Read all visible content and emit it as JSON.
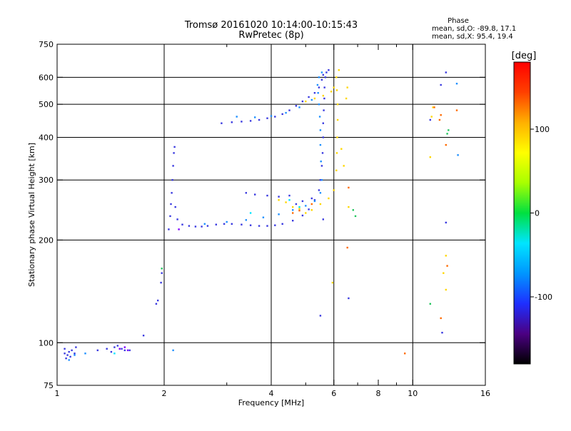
{
  "chart_data": {
    "type": "scatter",
    "title": "Tromsø 20161020 10:14:00-10:15:43",
    "subtitle": "RwPretec (8p)",
    "xlabel": "Frequency [MHz]",
    "ylabel": "Stationary phase Virtual Height [km]",
    "x_scale": "log",
    "y_scale": "log",
    "xlim": [
      1,
      16
    ],
    "ylim": [
      75,
      750
    ],
    "x_ticks": [
      1,
      2,
      4,
      6,
      8,
      10,
      16
    ],
    "x_minor_ticks": [
      3,
      5,
      7,
      9
    ],
    "y_ticks": [
      75,
      100,
      200,
      300,
      400,
      500,
      600,
      750
    ],
    "y_grid": [
      100,
      200,
      300,
      400,
      500,
      600
    ],
    "x_grid": [
      2,
      4,
      6,
      10
    ],
    "grid": true,
    "stats": {
      "title": "Phase",
      "line1": "mean, sd,O: -89.8, 17.1",
      "line2": "mean, sd,X:  95.4, 19.4"
    },
    "colorbar": {
      "label": "[deg]",
      "range": [
        -180,
        180
      ],
      "ticks": [
        100,
        0,
        -100
      ],
      "colors": [
        "#000000",
        "#4b0082",
        "#1e2fff",
        "#0096ff",
        "#00e5ff",
        "#00e040",
        "#a8ff00",
        "#ffff00",
        "#ffb000",
        "#ff4000",
        "#ff0000"
      ]
    },
    "series": [
      {
        "color": "#3a3ae0",
        "points": [
          [
            1.05,
            93
          ],
          [
            1.06,
            90
          ],
          [
            1.07,
            92
          ],
          [
            1.08,
            94
          ],
          [
            1.05,
            96
          ],
          [
            1.09,
            91
          ],
          [
            1.1,
            95
          ],
          [
            1.12,
            93
          ],
          [
            1.13,
            97
          ],
          [
            1.3,
            95
          ],
          [
            1.38,
            96
          ],
          [
            1.42,
            94
          ],
          [
            1.45,
            97
          ],
          [
            1.48,
            98
          ],
          [
            1.52,
            96
          ],
          [
            1.55,
            95
          ],
          [
            1.6,
            95
          ],
          [
            1.75,
            105
          ],
          [
            1.9,
            130
          ],
          [
            1.92,
            133
          ],
          [
            1.96,
            150
          ],
          [
            1.97,
            160
          ],
          [
            2.06,
            215
          ],
          [
            2.08,
            235
          ],
          [
            2.09,
            255
          ],
          [
            2.1,
            275
          ],
          [
            2.11,
            300
          ],
          [
            2.12,
            330
          ],
          [
            2.13,
            360
          ],
          [
            2.14,
            375
          ],
          [
            2.15,
            250
          ],
          [
            2.18,
            230
          ],
          [
            2.25,
            222
          ],
          [
            2.35,
            220
          ],
          [
            2.45,
            219
          ],
          [
            2.55,
            219
          ],
          [
            2.65,
            220
          ],
          [
            2.8,
            222
          ],
          [
            2.95,
            223
          ],
          [
            3.1,
            223
          ],
          [
            3.3,
            222
          ],
          [
            3.5,
            221
          ],
          [
            3.7,
            220
          ],
          [
            3.9,
            220
          ],
          [
            4.1,
            221
          ],
          [
            4.3,
            223
          ],
          [
            4.6,
            228
          ],
          [
            4.9,
            236
          ],
          [
            5.1,
            246
          ],
          [
            5.3,
            262
          ],
          [
            5.45,
            280
          ],
          [
            5.5,
            300
          ],
          [
            5.55,
            330
          ],
          [
            5.58,
            360
          ],
          [
            5.6,
            400
          ],
          [
            5.6,
            440
          ],
          [
            5.62,
            480
          ],
          [
            5.64,
            520
          ],
          [
            5.65,
            560
          ],
          [
            5.68,
            600
          ],
          [
            5.72,
            620
          ],
          [
            5.8,
            630
          ],
          [
            2.9,
            440
          ],
          [
            3.1,
            443
          ],
          [
            3.3,
            445
          ],
          [
            3.5,
            447
          ],
          [
            3.7,
            450
          ],
          [
            3.9,
            455
          ],
          [
            4.1,
            460
          ],
          [
            4.3,
            468
          ],
          [
            4.5,
            480
          ],
          [
            4.7,
            495
          ],
          [
            4.9,
            510
          ],
          [
            5.1,
            525
          ],
          [
            5.3,
            540
          ],
          [
            5.45,
            560
          ],
          [
            5.55,
            590
          ],
          [
            5.6,
            610
          ],
          [
            3.4,
            275
          ],
          [
            3.6,
            272
          ],
          [
            3.9,
            270
          ],
          [
            4.2,
            268
          ],
          [
            4.5,
            270
          ],
          [
            4.7,
            255
          ],
          [
            4.9,
            260
          ],
          [
            5.2,
            265
          ],
          [
            5.6,
            230
          ],
          [
            6.6,
            135
          ],
          [
            5.5,
            120
          ],
          [
            12.4,
            620
          ],
          [
            12.0,
            570
          ],
          [
            11.2,
            450
          ],
          [
            12.4,
            225
          ],
          [
            12.1,
            107
          ]
        ]
      },
      {
        "color": "#1e90ff",
        "points": [
          [
            1.08,
            89
          ],
          [
            1.12,
            92
          ],
          [
            1.2,
            93
          ],
          [
            2.6,
            223
          ],
          [
            3.0,
            226
          ],
          [
            3.4,
            229
          ],
          [
            3.8,
            233
          ],
          [
            4.2,
            238
          ],
          [
            4.6,
            245
          ],
          [
            5.0,
            252
          ],
          [
            5.3,
            260
          ],
          [
            5.5,
            275
          ],
          [
            5.55,
            300
          ],
          [
            5.52,
            340
          ],
          [
            5.5,
            380
          ],
          [
            5.5,
            420
          ],
          [
            5.48,
            460
          ],
          [
            5.45,
            500
          ],
          [
            5.42,
            540
          ],
          [
            5.4,
            570
          ],
          [
            5.45,
            600
          ],
          [
            5.55,
            620
          ],
          [
            3.2,
            460
          ],
          [
            3.6,
            458
          ],
          [
            4.0,
            462
          ],
          [
            4.4,
            472
          ],
          [
            4.8,
            490
          ],
          [
            5.2,
            515
          ],
          [
            2.12,
            95
          ],
          [
            13.4,
            355
          ],
          [
            13.3,
            575
          ]
        ]
      },
      {
        "color": "#ffd700",
        "points": [
          [
            4.2,
            262
          ],
          [
            4.4,
            258
          ],
          [
            4.6,
            250
          ],
          [
            4.8,
            247
          ],
          [
            5.0,
            240
          ],
          [
            5.2,
            245
          ],
          [
            5.5,
            255
          ],
          [
            5.8,
            265
          ],
          [
            6.0,
            280
          ],
          [
            6.1,
            320
          ],
          [
            6.12,
            360
          ],
          [
            6.13,
            400
          ],
          [
            6.15,
            450
          ],
          [
            6.15,
            500
          ],
          [
            6.12,
            550
          ],
          [
            6.1,
            600
          ],
          [
            6.2,
            630
          ],
          [
            5.0,
            510
          ],
          [
            5.3,
            520
          ],
          [
            5.6,
            530
          ],
          [
            5.9,
            545
          ],
          [
            6.0,
            560
          ],
          [
            6.3,
            370
          ],
          [
            6.4,
            330
          ],
          [
            6.6,
            250
          ],
          [
            6.55,
            560
          ],
          [
            6.5,
            520
          ],
          [
            5.95,
            150
          ],
          [
            11.2,
            350
          ],
          [
            11.4,
            490
          ],
          [
            12.4,
            180
          ],
          [
            12.2,
            160
          ],
          [
            12.4,
            143
          ],
          [
            11.3,
            460
          ]
        ]
      },
      {
        "color": "#ff6a00",
        "points": [
          [
            4.6,
            240
          ],
          [
            4.8,
            244
          ],
          [
            5.2,
            255
          ],
          [
            6.6,
            285
          ],
          [
            6.55,
            190
          ],
          [
            9.5,
            93
          ],
          [
            11.5,
            490
          ],
          [
            12.0,
            465
          ],
          [
            11.9,
            450
          ],
          [
            12.4,
            380
          ],
          [
            12.5,
            168
          ],
          [
            12.0,
            118
          ],
          [
            13.3,
            480
          ]
        ]
      },
      {
        "color": "#22c55e",
        "points": [
          [
            1.97,
            165
          ],
          [
            11.2,
            130
          ],
          [
            12.6,
            420
          ],
          [
            12.5,
            410
          ],
          [
            6.8,
            245
          ],
          [
            6.9,
            235
          ]
        ]
      },
      {
        "color": "#00e5ff",
        "points": [
          [
            4.5,
            262
          ],
          [
            4.8,
            250
          ],
          [
            3.5,
            240
          ],
          [
            1.45,
            93
          ]
        ]
      },
      {
        "color": "#7f00ff",
        "points": [
          [
            1.5,
            96
          ],
          [
            1.55,
            97
          ],
          [
            1.58,
            95
          ],
          [
            2.2,
            215
          ]
        ]
      }
    ]
  }
}
